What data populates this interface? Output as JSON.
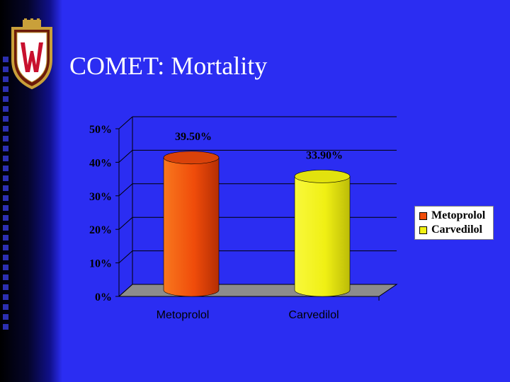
{
  "slide": {
    "title": "COMET:  Mortality"
  },
  "colors": {
    "background": "#2b2df2",
    "metoprolol": "#f04c0a",
    "carvedilol": "#f2f214"
  },
  "chart_data": {
    "type": "bar",
    "title": "",
    "xlabel": "",
    "ylabel": "",
    "ylim": [
      0,
      50
    ],
    "y_tick_labels": [
      "0%",
      "10%",
      "20%",
      "30%",
      "40%",
      "50%"
    ],
    "categories": [
      "Metoprolol",
      "Carvedilol"
    ],
    "values": [
      39.5,
      33.9
    ],
    "data_labels": [
      "39.50%",
      "33.90%"
    ],
    "legend": {
      "position": "right",
      "entries": [
        {
          "name": "Metoprolol",
          "color": "#f04c0a"
        },
        {
          "name": "Carvedilol",
          "color": "#f2f214"
        }
      ]
    },
    "grid": true,
    "style": "3d-cylinder"
  }
}
